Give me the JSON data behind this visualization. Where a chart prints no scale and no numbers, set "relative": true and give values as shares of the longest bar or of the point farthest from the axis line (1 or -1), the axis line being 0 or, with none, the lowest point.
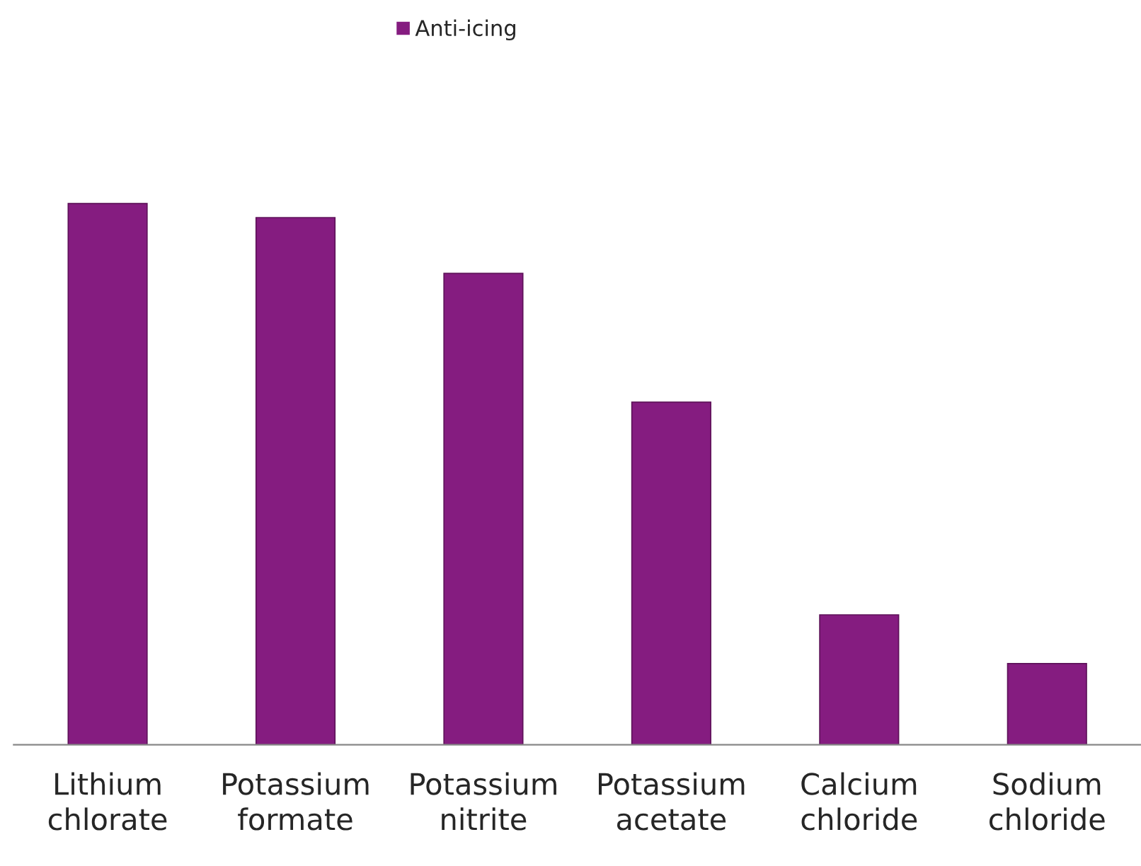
{
  "chart_data": {
    "type": "bar",
    "relative": true,
    "categories": [
      "Lithium chlorate",
      "Potassium formate",
      "Potassium nitrite",
      "Potassium acetate",
      "Calcium chloride",
      "Sodium chloride"
    ],
    "series": [
      {
        "name": "Anti-icing",
        "color": "#851c80",
        "values": [
          1,
          0.974,
          0.871,
          0.633,
          0.24,
          0.15
        ]
      }
    ],
    "legend": "top",
    "grid": false
  }
}
